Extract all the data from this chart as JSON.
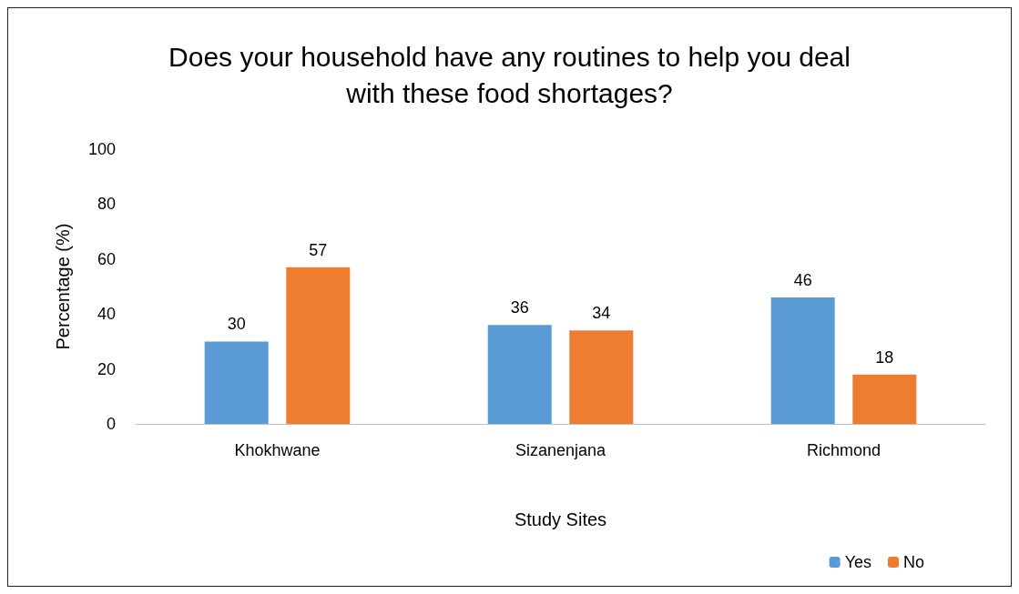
{
  "chart_data": {
    "type": "bar",
    "title": "Does your household have any routines to help you deal\nwith these food shortages?",
    "xlabel": "Study Sites",
    "ylabel": "Percentage (%)",
    "categories": [
      "Khokhwane",
      "Sizanenjana",
      "Richmond"
    ],
    "series": [
      {
        "name": "Yes",
        "color": "#5b9bd5",
        "values": [
          30,
          36,
          46
        ]
      },
      {
        "name": "No",
        "color": "#ed7d31",
        "values": [
          57,
          34,
          18
        ]
      }
    ],
    "ylim": [
      0,
      100
    ],
    "yticks": [
      0,
      20,
      40,
      60,
      80,
      100
    ],
    "grid": false,
    "legend": "bottom right",
    "data_labels": true
  }
}
